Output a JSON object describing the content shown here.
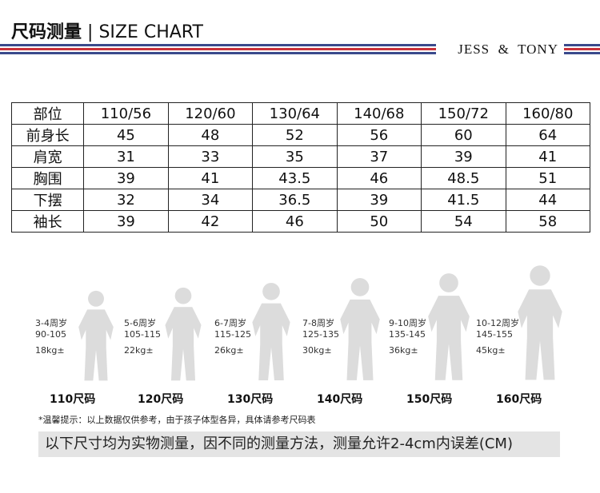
{
  "header": {
    "title_cn": "尺码测量",
    "separator": "|",
    "title_en": "SIZE CHART",
    "brand_left": "JESS",
    "brand_amp": "&",
    "brand_right": "TONY"
  },
  "table": {
    "header": [
      "部位",
      "110/56",
      "120/60",
      "130/64",
      "140/68",
      "150/72",
      "160/80"
    ],
    "rows": [
      [
        "前身长",
        45,
        48,
        52,
        56,
        60,
        64
      ],
      [
        "肩宽",
        31,
        33,
        35,
        37,
        39,
        41
      ],
      [
        "胸围",
        39,
        41,
        43.5,
        46,
        48.5,
        51
      ],
      [
        "下摆",
        32,
        34,
        36.5,
        39,
        41.5,
        44
      ],
      [
        "袖长",
        39,
        42,
        46,
        50,
        54,
        58
      ]
    ]
  },
  "figures": [
    {
      "age": "3-4周岁",
      "height": "90-105",
      "weight": "18kg±",
      "size": "110尺码"
    },
    {
      "age": "5-6周岁",
      "height": "105-115",
      "weight": "22kg±",
      "size": "120尺码"
    },
    {
      "age": "6-7周岁",
      "height": "115-125",
      "weight": "26kg±",
      "size": "130尺码"
    },
    {
      "age": "7-8周岁",
      "height": "125-135",
      "weight": "30kg±",
      "size": "140尺码"
    },
    {
      "age": "9-10周岁",
      "height": "135-145",
      "weight": "36kg±",
      "size": "150尺码"
    },
    {
      "age": "10-12周岁",
      "height": "145-155",
      "weight": "45kg±",
      "size": "160尺码"
    }
  ],
  "note": "*温馨提示：以上数据仅供参考，由于孩子体型各异，具体请参考尺码表",
  "footer": "以下尺寸均为实物测量，因不同的测量方法，测量允许2-4cm内误差(CM)"
}
